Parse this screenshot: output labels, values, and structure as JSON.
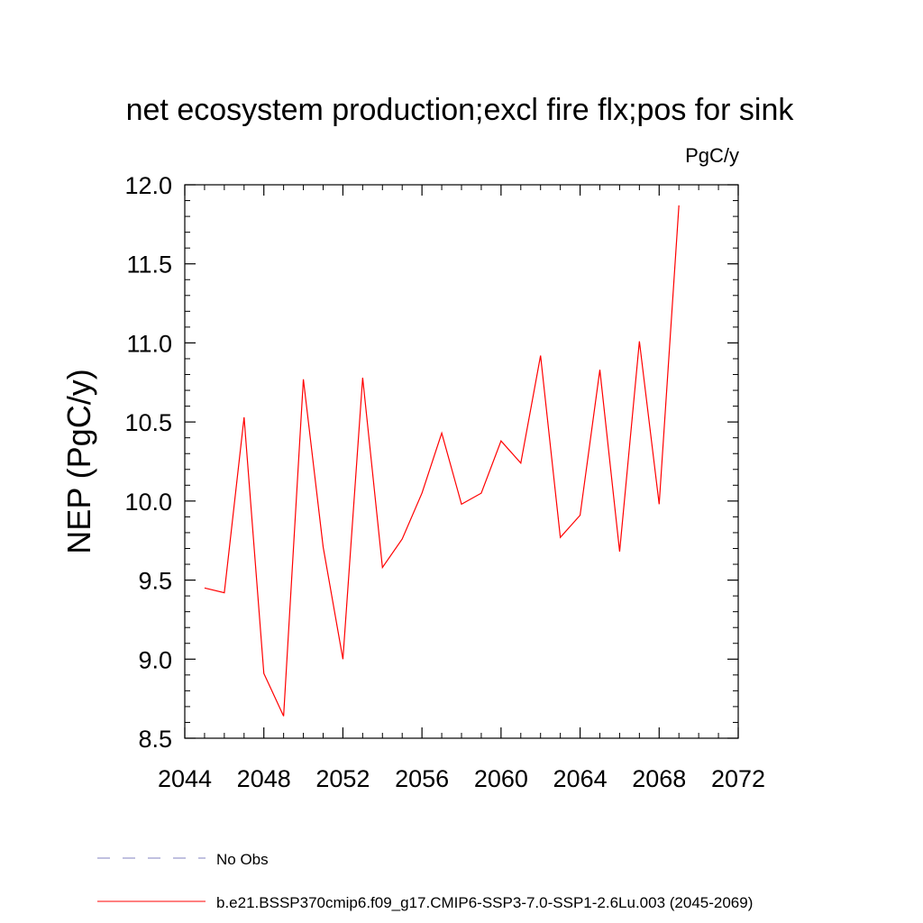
{
  "chart_data": {
    "type": "line",
    "title": "net ecosystem production;excl fire flx;pos for sink",
    "units_label": "PgC/y",
    "ylabel": "NEP  (PgC/y)",
    "xlabel": "",
    "xlim": [
      2044,
      2072
    ],
    "ylim": [
      8.5,
      12.0
    ],
    "x_ticks": [
      "2044",
      "2048",
      "2052",
      "2056",
      "2060",
      "2064",
      "2068",
      "2072"
    ],
    "y_ticks": [
      "8.5",
      "9.0",
      "9.5",
      "10.0",
      "10.5",
      "11.0",
      "11.5",
      "12.0"
    ],
    "grid": false,
    "legend_position": "bottom",
    "series": [
      {
        "name": "b.e21.BSSP370cmip6.f09_g17.CMIP6-SSP3-7.0-SSP1-2.6Lu.003 (2045-2069)",
        "color": "#ff0000",
        "x": [
          2045,
          2046,
          2047,
          2048,
          2049,
          2050,
          2051,
          2052,
          2053,
          2054,
          2055,
          2056,
          2057,
          2058,
          2059,
          2060,
          2061,
          2062,
          2063,
          2064,
          2065,
          2066,
          2067,
          2068,
          2069
        ],
        "y": [
          9.45,
          9.42,
          10.53,
          8.91,
          8.64,
          10.77,
          9.71,
          9.0,
          10.78,
          9.58,
          9.76,
          10.05,
          10.43,
          9.98,
          10.05,
          10.38,
          10.24,
          10.92,
          9.77,
          9.91,
          10.83,
          9.68,
          11.01,
          9.98,
          11.87
        ]
      }
    ],
    "legend": [
      {
        "label": "No Obs",
        "color": "#8080c0",
        "style": "dashed"
      },
      {
        "label": "b.e21.BSSP370cmip6.f09_g17.CMIP6-SSP3-7.0-SSP1-2.6Lu.003 (2045-2069)",
        "color": "#ff0000",
        "style": "solid"
      }
    ]
  }
}
